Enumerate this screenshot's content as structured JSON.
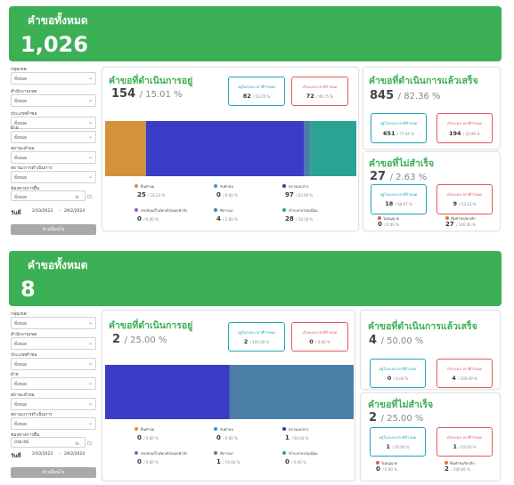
{
  "colors": {
    "green": "#3cb054",
    "orange": "#d4923a",
    "blue_bar": "#3a3ec7",
    "slate": "#4b7fa6",
    "teal": "#2aa394",
    "purple": "#9b59b6",
    "cyan": "#23a3b8",
    "red": "#e05a5a",
    "navy": "#2c3e9e"
  },
  "sections": [
    {
      "banner": {
        "title": "คำขอทั้งหมด",
        "total": "1,026"
      },
      "filters": {
        "fields": [
          {
            "label": "กลุ่มเขต",
            "value": "ทั้งหมด"
          },
          {
            "label": "สำนักงานเขต",
            "value": "ทั้งหมด"
          },
          {
            "label": "ประเภทคำขอ",
            "value": "ทั้งหมด"
          },
          {
            "label": "ฝ่าย",
            "value": "ทั้งหมด"
          },
          {
            "label": "สถานะฝ่ายอ",
            "value": "ทั้งหมด"
          },
          {
            "label": "สถานะการดำเนินการ",
            "value": "ทั้งหมด"
          }
        ],
        "channel": {
          "label": "ช่องทางการยื่น",
          "value": "ทั้งหมด"
        },
        "date": {
          "label": "วันที่",
          "from": "2/10/2023",
          "sep": "-",
          "to": "29/2/2024"
        },
        "button": "ล้างเงื่อนไข"
      },
      "in_progress": {
        "title": "คำขอที่ดำเนินการอยู่",
        "count": "154",
        "pct": "/ 15.01 %",
        "within": {
          "label": "อยู่ในระยะเวลาที่กำหนด",
          "num": "82",
          "pct": "/ 53.25 %"
        },
        "over": {
          "label": "เกินระยะเวลาที่กำหนด",
          "num": "72",
          "pct": "/ 46.75 %"
        },
        "bar": [
          {
            "value": 25,
            "color": "#d4923a"
          },
          {
            "value": 97,
            "color": "#3a3ec7"
          },
          {
            "value": 4,
            "color": "#4b7fa6"
          },
          {
            "value": 28,
            "color": "#2aa394"
          }
        ],
        "legend": [
          {
            "name": "ยื่นคำขอ",
            "num": "25",
            "pct": "/ 16.23 %",
            "color": "#d4923a"
          },
          {
            "name": "รับคำขอ",
            "num": "0",
            "pct": "/ 0.00 %",
            "color": "#3a8fd8"
          },
          {
            "name": "ตรวจเอกสาร",
            "num": "97",
            "pct": "/ 62.99 %",
            "color": "#2c3e9e"
          },
          {
            "name": "ส่งกลับแก้ไข/ยกเลิก/ออกคำสั่ง",
            "num": "0",
            "pct": "/ 0.00 %",
            "color": "#9b59b6"
          },
          {
            "name": "พิจารณา",
            "num": "4",
            "pct": "/ 2.60 %",
            "color": "#4b7fa6"
          },
          {
            "name": "ชำระค่าธรรมเนียม",
            "num": "28",
            "pct": "/ 18.18 %",
            "color": "#2aa394"
          }
        ]
      },
      "completed": {
        "title": "คำขอที่ดำเนินการแล้วเสร็จ",
        "count": "845",
        "pct": "/ 82.36 %",
        "within": {
          "label": "อยู่ในระยะเวลาที่กำหนด",
          "num": "651",
          "pct": "/ 77.04 %"
        },
        "over": {
          "label": "เกินระยะเวลาที่กำหนด",
          "num": "194",
          "pct": "/ 22.96 %"
        }
      },
      "failed": {
        "title": "คำขอที่ไม่สำเร็จ",
        "count": "27",
        "pct": "/ 2.63 %",
        "within": {
          "label": "อยู่ในระยะเวลาที่กำหนด",
          "num": "18",
          "pct": "/ 66.67 %"
        },
        "over": {
          "label": "เกินระยะเวลาที่กำหนด",
          "num": "9",
          "pct": "/ 33.33 %"
        },
        "items": [
          {
            "name": "ไม่อนุญาต",
            "num": "0",
            "pct": "/ 0.00 %",
            "color": "#e05a5a"
          },
          {
            "name": "คืนคำขอ/ยกเลิก",
            "num": "27",
            "pct": "/ 100.00 %",
            "color": "#e87a2a"
          }
        ]
      }
    },
    {
      "banner": {
        "title": "คำขอทั้งหมด",
        "total": "8"
      },
      "filters": {
        "fields": [
          {
            "label": "กลุ่มเขต",
            "value": "ทั้งหมด"
          },
          {
            "label": "สำนักงานเขต",
            "value": "ทั้งหมด"
          },
          {
            "label": "ประเภทคำขอ",
            "value": "ทั้งหมด"
          },
          {
            "label": "ฝ่าย",
            "value": "ทั้งหมด"
          },
          {
            "label": "สถานะฝ่ายอ",
            "value": "ทั้งหมด"
          },
          {
            "label": "สถานะการดำเนินการ",
            "value": "ทั้งหมด"
          }
        ],
        "channel": {
          "label": "ช่องทางการยื่น",
          "value": "ONLINE"
        },
        "date": {
          "label": "วันที่",
          "from": "2/10/2023",
          "sep": "-",
          "to": "29/2/2024"
        },
        "button": "ล้างเงื่อนไข"
      },
      "in_progress": {
        "title": "คำขอที่ดำเนินการอยู่",
        "count": "2",
        "pct": "/ 25.00 %",
        "within": {
          "label": "อยู่ในระยะเวลาที่กำหนด",
          "num": "2",
          "pct": "/ 100.00 %"
        },
        "over": {
          "label": "เกินระยะเวลาที่กำหนด",
          "num": "0",
          "pct": "/ 0.00 %"
        },
        "bar": [
          {
            "value": 1,
            "color": "#3a3ec7"
          },
          {
            "value": 1,
            "color": "#4b7fa6"
          }
        ],
        "legend": [
          {
            "name": "ยื่นคำขอ",
            "num": "0",
            "pct": "/ 0.00 %",
            "color": "#d4923a"
          },
          {
            "name": "รับคำขอ",
            "num": "0",
            "pct": "/ 0.00 %",
            "color": "#3a8fd8"
          },
          {
            "name": "ตรวจเอกสาร",
            "num": "1",
            "pct": "/ 50.00 %",
            "color": "#2c3e9e"
          },
          {
            "name": "ส่งกลับแก้ไข/ยกเลิก/ออกคำสั่ง",
            "num": "0",
            "pct": "/ 0.00 %",
            "color": "#9b59b6"
          },
          {
            "name": "พิจารณา",
            "num": "1",
            "pct": "/ 50.00 %",
            "color": "#4b7fa6"
          },
          {
            "name": "ชำระค่าธรรมเนียม",
            "num": "0",
            "pct": "/ 0.00 %",
            "color": "#2aa394"
          }
        ]
      },
      "completed": {
        "title": "คำขอที่ดำเนินการแล้วเสร็จ",
        "count": "4",
        "pct": "/ 50.00 %",
        "within": {
          "label": "อยู่ในระยะเวลาที่กำหนด",
          "num": "0",
          "pct": "/ 0.00 %"
        },
        "over": {
          "label": "เกินระยะเวลาที่กำหนด",
          "num": "4",
          "pct": "/ 100.00 %"
        }
      },
      "failed": {
        "title": "คำขอที่ไม่สำเร็จ",
        "count": "2",
        "pct": "/ 25.00 %",
        "within": {
          "label": "อยู่ในระยะเวลาที่กำหนด",
          "num": "1",
          "pct": "/ 50.00 %"
        },
        "over": {
          "label": "เกินระยะเวลาที่กำหนด",
          "num": "1",
          "pct": "/ 50.00 %"
        },
        "items": [
          {
            "name": "ไม่อนุญาต",
            "num": "0",
            "pct": "/ 0.00 %",
            "color": "#e05a5a"
          },
          {
            "name": "คืนคำขอ/ยกเลิก",
            "num": "2",
            "pct": "/ 100.00 %",
            "color": "#e87a2a"
          }
        ]
      }
    }
  ]
}
